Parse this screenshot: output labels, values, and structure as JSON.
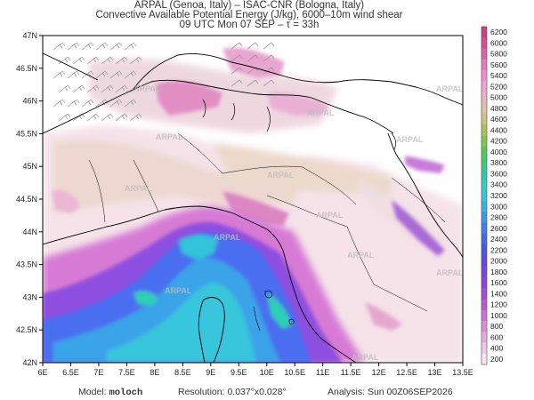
{
  "header": {
    "line1": "ARPAL (Genoa, Italy)  –  ISAC-CNR (Bologna, Italy)",
    "line2": "Convective Available Potential Energy (J/kg), 6000–10m wind shear",
    "line3": "09 UTC Mon 07 SEP  –  τ = 33h"
  },
  "map": {
    "lat_labels": [
      "47N",
      "46.5N",
      "46N",
      "45.5N",
      "45N",
      "44.5N",
      "44N",
      "43.5N",
      "43N",
      "42.5N",
      "42N"
    ],
    "lon_labels": [
      "6E",
      "6.5E",
      "7E",
      "7.5E",
      "8E",
      "8.5E",
      "9E",
      "9.5E",
      "10E",
      "10.5E",
      "11E",
      "11.5E",
      "12E",
      "12.5E",
      "13E",
      "13.5E"
    ],
    "watermark": "ARPAL",
    "land_color": "#ffffff",
    "border_color": "#000000"
  },
  "colorbar": {
    "levels": [
      "6200",
      "6000",
      "5800",
      "5600",
      "5400",
      "5200",
      "5000",
      "4800",
      "4600",
      "4400",
      "4200",
      "4000",
      "3800",
      "3600",
      "3400",
      "3200",
      "3000",
      "2800",
      "2600",
      "2400",
      "2200",
      "2000",
      "1800",
      "1600",
      "1400",
      "1200",
      "1000",
      "800",
      "600",
      "400",
      "200"
    ],
    "colors": [
      "#cc3f84",
      "#d84d94",
      "#e160a8",
      "#e978bf",
      "#f08ed0",
      "#f2a2d6",
      "#e8b4c8",
      "#ddc3a6",
      "#c9c480",
      "#a8c65a",
      "#7fc84a",
      "#56c95a",
      "#3acb7b",
      "#2dcda0",
      "#2dd0c4",
      "#34c8de",
      "#3bb2e6",
      "#3e98ea",
      "#3f7fee",
      "#4567f0",
      "#4f52ee",
      "#6048ea",
      "#7545e4",
      "#8a47dc",
      "#a24dd6",
      "#bb59d4",
      "#d36fd6",
      "#e08ad8",
      "#eaa8e0",
      "#f2c8e8",
      "#fae6f2"
    ]
  },
  "footer": {
    "model_label": "Model:",
    "model_value": "moloch",
    "resolution_label": "Resolution:",
    "resolution_value": "0.037°x0.028°",
    "analysis_label": "Analysis:",
    "analysis_value": "Sun 00Z06SEP2026"
  }
}
